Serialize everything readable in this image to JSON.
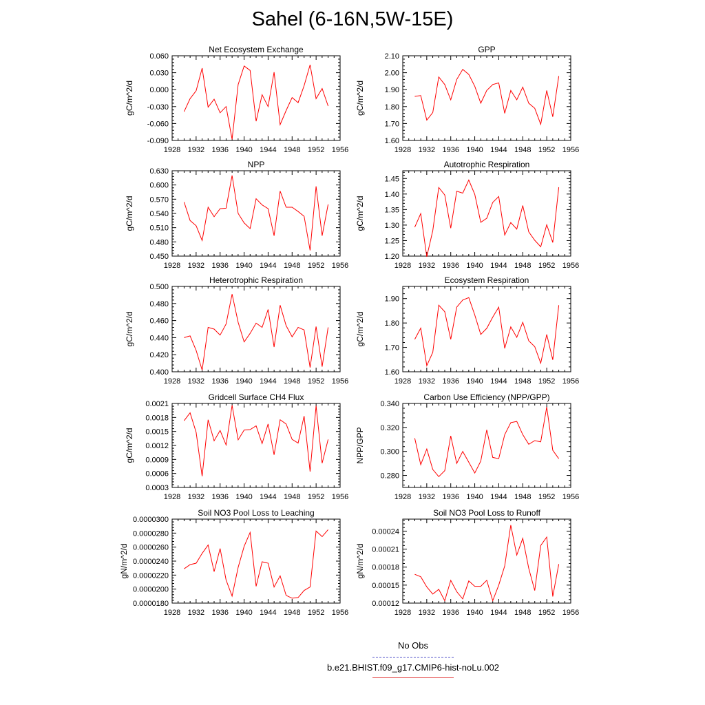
{
  "page": {
    "title": "Sahel (6-16N,5W-15E)"
  },
  "colors": {
    "series": "#ff0000",
    "obs": "#4040c0",
    "axis": "#000000"
  },
  "legend": {
    "obs_label": "No Obs",
    "model_label": "b.e21.BHIST.f09_g17.CMIP6-hist-noLu.002"
  },
  "chart_data": [
    {
      "type": "line",
      "title": "Net Ecosystem Exchange",
      "xlabel": "",
      "ylabel": "gC/m^2/d",
      "xlim": [
        1928,
        1956
      ],
      "ylim": [
        -0.09,
        0.06
      ],
      "xticks": [
        "1928",
        "1932",
        "1936",
        "1940",
        "1944",
        "1948",
        "1952",
        "1956"
      ],
      "yticks": [
        "0.060",
        "0.030",
        "0.000",
        "-0.030",
        "-0.060",
        "-0.090"
      ],
      "series": [
        {
          "x": [
            1930,
            1931,
            1932,
            1933,
            1934,
            1935,
            1936,
            1937,
            1938,
            1939,
            1940,
            1941,
            1942,
            1943,
            1944,
            1945,
            1946,
            1947,
            1948,
            1949,
            1950,
            1951,
            1952,
            1953,
            1954
          ],
          "values": [
            -0.039,
            -0.016,
            -0.002,
            0.038,
            -0.031,
            -0.017,
            -0.041,
            -0.03,
            -0.088,
            0.009,
            0.042,
            0.034,
            -0.056,
            -0.009,
            -0.03,
            0.031,
            -0.062,
            -0.037,
            -0.014,
            -0.023,
            0.007,
            0.044,
            -0.016,
            0.002,
            -0.029
          ]
        }
      ]
    },
    {
      "type": "line",
      "title": "GPP",
      "xlabel": "",
      "ylabel": "gC/m^2/d",
      "xlim": [
        1928,
        1956
      ],
      "ylim": [
        1.6,
        2.1
      ],
      "xticks": [
        "1928",
        "1932",
        "1936",
        "1940",
        "1944",
        "1948",
        "1952",
        "1956"
      ],
      "yticks": [
        "2.10",
        "2.00",
        "1.90",
        "1.80",
        "1.70",
        "1.60"
      ],
      "series": [
        {
          "x": [
            1930,
            1931,
            1932,
            1933,
            1934,
            1935,
            1936,
            1937,
            1938,
            1939,
            1940,
            1941,
            1942,
            1943,
            1944,
            1945,
            1946,
            1947,
            1948,
            1949,
            1950,
            1951,
            1952,
            1953,
            1954
          ],
          "values": [
            1.86,
            1.865,
            1.72,
            1.765,
            1.975,
            1.93,
            1.84,
            1.96,
            2.02,
            1.99,
            1.92,
            1.82,
            1.895,
            1.93,
            1.94,
            1.76,
            1.895,
            1.84,
            1.915,
            1.82,
            1.79,
            1.695,
            1.895,
            1.74,
            1.98
          ]
        }
      ]
    },
    {
      "type": "line",
      "title": "NPP",
      "xlabel": "",
      "ylabel": "gC/m^2/d",
      "xlim": [
        1928,
        1956
      ],
      "ylim": [
        0.45,
        0.63
      ],
      "xticks": [
        "1928",
        "1932",
        "1936",
        "1940",
        "1944",
        "1948",
        "1952",
        "1956"
      ],
      "yticks": [
        "0.630",
        "0.600",
        "0.570",
        "0.540",
        "0.510",
        "0.480",
        "0.450"
      ],
      "series": [
        {
          "x": [
            1930,
            1931,
            1932,
            1933,
            1934,
            1935,
            1936,
            1937,
            1938,
            1939,
            1940,
            1941,
            1942,
            1943,
            1944,
            1945,
            1946,
            1947,
            1948,
            1949,
            1950,
            1951,
            1952,
            1953,
            1954
          ],
          "values": [
            0.564,
            0.525,
            0.514,
            0.483,
            0.553,
            0.533,
            0.55,
            0.551,
            0.62,
            0.54,
            0.52,
            0.508,
            0.571,
            0.558,
            0.55,
            0.493,
            0.587,
            0.553,
            0.553,
            0.544,
            0.534,
            0.462,
            0.597,
            0.493,
            0.559
          ]
        }
      ]
    },
    {
      "type": "line",
      "title": "Autotrophic Respiration",
      "xlabel": "",
      "ylabel": "gC/m^2/d",
      "xlim": [
        1928,
        1956
      ],
      "ylim": [
        1.2,
        1.475
      ],
      "xticks": [
        "1928",
        "1932",
        "1936",
        "1940",
        "1944",
        "1948",
        "1952",
        "1956"
      ],
      "yticks": [
        "1.45",
        "1.40",
        "1.35",
        "1.30",
        "1.25",
        "1.20"
      ],
      "series": [
        {
          "x": [
            1930,
            1931,
            1932,
            1933,
            1934,
            1935,
            1936,
            1937,
            1938,
            1939,
            1940,
            1941,
            1942,
            1943,
            1944,
            1945,
            1946,
            1947,
            1948,
            1949,
            1950,
            1951,
            1952,
            1953,
            1954
          ],
          "values": [
            1.293,
            1.337,
            1.198,
            1.282,
            1.421,
            1.397,
            1.29,
            1.409,
            1.403,
            1.445,
            1.399,
            1.309,
            1.322,
            1.373,
            1.392,
            1.268,
            1.308,
            1.287,
            1.363,
            1.278,
            1.251,
            1.23,
            1.301,
            1.244,
            1.422
          ]
        }
      ]
    },
    {
      "type": "line",
      "title": "Heterotrophic Respiration",
      "xlabel": "",
      "ylabel": "gC/m^2/d",
      "xlim": [
        1928,
        1956
      ],
      "ylim": [
        0.4,
        0.5
      ],
      "xticks": [
        "1928",
        "1932",
        "1936",
        "1940",
        "1944",
        "1948",
        "1952",
        "1956"
      ],
      "yticks": [
        "0.500",
        "0.480",
        "0.460",
        "0.440",
        "0.420",
        "0.400"
      ],
      "series": [
        {
          "x": [
            1930,
            1931,
            1932,
            1933,
            1934,
            1935,
            1936,
            1937,
            1938,
            1939,
            1940,
            1941,
            1942,
            1943,
            1944,
            1945,
            1946,
            1947,
            1948,
            1949,
            1950,
            1951,
            1952,
            1953,
            1954
          ],
          "values": [
            0.44,
            0.442,
            0.425,
            0.402,
            0.452,
            0.45,
            0.443,
            0.456,
            0.491,
            0.458,
            0.435,
            0.445,
            0.457,
            0.452,
            0.473,
            0.429,
            0.478,
            0.454,
            0.441,
            0.452,
            0.449,
            0.405,
            0.453,
            0.406,
            0.452
          ]
        }
      ]
    },
    {
      "type": "line",
      "title": "Ecosystem Respiration",
      "xlabel": "",
      "ylabel": "gC/m^2/d",
      "xlim": [
        1928,
        1956
      ],
      "ylim": [
        1.6,
        1.95
      ],
      "xticks": [
        "1928",
        "1932",
        "1936",
        "1940",
        "1944",
        "1948",
        "1952",
        "1956"
      ],
      "yticks": [
        "1.90",
        "1.80",
        "1.70",
        "1.60"
      ],
      "series": [
        {
          "x": [
            1930,
            1931,
            1932,
            1933,
            1934,
            1935,
            1936,
            1937,
            1938,
            1939,
            1940,
            1941,
            1942,
            1943,
            1944,
            1945,
            1946,
            1947,
            1948,
            1949,
            1950,
            1951,
            1952,
            1953,
            1954
          ],
          "values": [
            1.733,
            1.779,
            1.625,
            1.68,
            1.873,
            1.846,
            1.733,
            1.865,
            1.894,
            1.904,
            1.833,
            1.753,
            1.778,
            1.824,
            1.865,
            1.696,
            1.784,
            1.741,
            1.803,
            1.727,
            1.703,
            1.635,
            1.753,
            1.649,
            1.873
          ]
        }
      ]
    },
    {
      "type": "line",
      "title": "Gridcell Surface CH4 Flux",
      "xlabel": "",
      "ylabel": "gC/m^2/d",
      "xlim": [
        1928,
        1956
      ],
      "ylim": [
        0.0003,
        0.0021
      ],
      "xticks": [
        "1928",
        "1932",
        "1936",
        "1940",
        "1944",
        "1948",
        "1952",
        "1956"
      ],
      "yticks": [
        "0.0021",
        "0.0018",
        "0.0015",
        "0.0012",
        "0.0009",
        "0.0006",
        "0.0003"
      ],
      "series": [
        {
          "x": [
            1930,
            1931,
            1932,
            1933,
            1934,
            1935,
            1936,
            1937,
            1938,
            1939,
            1940,
            1941,
            1942,
            1943,
            1944,
            1945,
            1946,
            1947,
            1948,
            1949,
            1950,
            1951,
            1952,
            1953,
            1954
          ],
          "values": [
            0.00173,
            0.0019,
            0.00148,
            0.00054,
            0.00175,
            0.0013,
            0.00152,
            0.00121,
            0.00206,
            0.00132,
            0.00153,
            0.00154,
            0.00162,
            0.00124,
            0.00166,
            0.001,
            0.00175,
            0.00166,
            0.00133,
            0.00125,
            0.00183,
            0.00064,
            0.00205,
            0.00082,
            0.00133
          ]
        }
      ]
    },
    {
      "type": "line",
      "title": "Carbon Use Efficiency (NPP/GPP)",
      "xlabel": "",
      "ylabel": "NPP/GPP",
      "xlim": [
        1928,
        1956
      ],
      "ylim": [
        0.27,
        0.34
      ],
      "xticks": [
        "1928",
        "1932",
        "1936",
        "1940",
        "1944",
        "1948",
        "1952",
        "1956"
      ],
      "yticks": [
        "0.340",
        "0.320",
        "0.300",
        "0.280"
      ],
      "series": [
        {
          "x": [
            1930,
            1931,
            1932,
            1933,
            1934,
            1935,
            1936,
            1937,
            1938,
            1939,
            1940,
            1941,
            1942,
            1943,
            1944,
            1945,
            1946,
            1947,
            1948,
            1949,
            1950,
            1951,
            1952,
            1953,
            1954
          ],
          "values": [
            0.311,
            0.289,
            0.302,
            0.285,
            0.279,
            0.284,
            0.313,
            0.29,
            0.3,
            0.291,
            0.282,
            0.292,
            0.318,
            0.295,
            0.294,
            0.314,
            0.324,
            0.325,
            0.314,
            0.306,
            0.309,
            0.308,
            0.337,
            0.301,
            0.294
          ]
        }
      ]
    },
    {
      "type": "line",
      "title": "Soil NO3 Pool Loss to Leaching",
      "xlabel": "",
      "ylabel": "gN/m^2/d",
      "xlim": [
        1928,
        1956
      ],
      "ylim": [
        1.8e-05,
        3e-05
      ],
      "xticks": [
        "1928",
        "1932",
        "1936",
        "1940",
        "1944",
        "1948",
        "1952",
        "1956"
      ],
      "yticks": [
        "0.0000300",
        "0.0000280",
        "0.0000260",
        "0.0000240",
        "0.0000220",
        "0.0000200",
        "0.0000180"
      ],
      "series": [
        {
          "x": [
            1930,
            1931,
            1932,
            1933,
            1934,
            1935,
            1936,
            1937,
            1938,
            1939,
            1940,
            1941,
            1942,
            1943,
            1944,
            1945,
            1946,
            1947,
            1948,
            1949,
            1950,
            1951,
            1952,
            1953,
            1954
          ],
          "values": [
            2.29e-05,
            2.35e-05,
            2.37e-05,
            2.51e-05,
            2.63e-05,
            2.25e-05,
            2.58e-05,
            2.13e-05,
            1.9e-05,
            2.31e-05,
            2.61e-05,
            2.81e-05,
            2.04e-05,
            2.39e-05,
            2.37e-05,
            2.03e-05,
            2.19e-05,
            1.91e-05,
            1.87e-05,
            1.88e-05,
            1.98e-05,
            2.03e-05,
            2.83e-05,
            2.75e-05,
            2.85e-05
          ]
        }
      ]
    },
    {
      "type": "line",
      "title": "Soil NO3 Pool Loss to Runoff",
      "xlabel": "",
      "ylabel": "gN/m^2/d",
      "xlim": [
        1928,
        1956
      ],
      "ylim": [
        0.00012,
        0.00026
      ],
      "xticks": [
        "1928",
        "1932",
        "1936",
        "1940",
        "1944",
        "1948",
        "1952",
        "1956"
      ],
      "yticks": [
        "0.00024",
        "0.00021",
        "0.00018",
        "0.00015",
        "0.00012"
      ],
      "series": [
        {
          "x": [
            1930,
            1931,
            1932,
            1933,
            1934,
            1935,
            1936,
            1937,
            1938,
            1939,
            1940,
            1941,
            1942,
            1943,
            1944,
            1945,
            1946,
            1947,
            1948,
            1949,
            1950,
            1951,
            1952,
            1953,
            1954
          ],
          "values": [
            0.000168,
            0.000164,
            0.000147,
            0.000135,
            0.000143,
            0.000124,
            0.000158,
            0.000139,
            0.000127,
            0.000157,
            0.000148,
            0.000148,
            0.000158,
            0.000124,
            0.00015,
            0.000182,
            0.00025,
            0.0002,
            0.000228,
            0.000178,
            0.000141,
            0.000216,
            0.00023,
            0.000131,
            0.000185
          ]
        }
      ]
    }
  ]
}
